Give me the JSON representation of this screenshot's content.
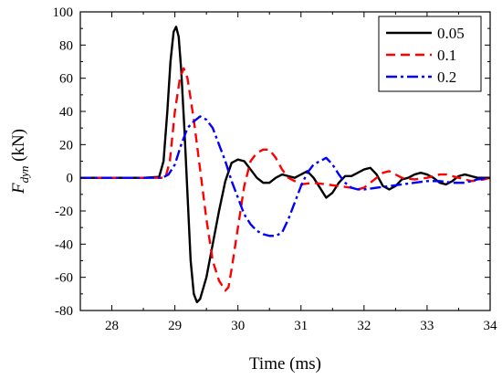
{
  "chart_data": {
    "type": "line",
    "xlabel": "Time (ms)",
    "ylabel": {
      "main": "F",
      "sub": "dyn",
      "unit": " (kN)"
    },
    "xlim": [
      27.5,
      34
    ],
    "ylim": [
      -80,
      100
    ],
    "xticks": [
      28,
      29,
      30,
      31,
      32,
      33,
      34
    ],
    "yticks": [
      -80,
      -60,
      -40,
      -20,
      0,
      20,
      40,
      60,
      80,
      100
    ],
    "grid": false,
    "legend_position": "top-right",
    "series": [
      {
        "name": "0.05",
        "color": "#000000",
        "dash": "solid",
        "points": [
          [
            27.5,
            0
          ],
          [
            28,
            0
          ],
          [
            28.5,
            0
          ],
          [
            28.75,
            0.5
          ],
          [
            28.82,
            10
          ],
          [
            28.88,
            40
          ],
          [
            28.93,
            70
          ],
          [
            28.98,
            88
          ],
          [
            29.02,
            91
          ],
          [
            29.06,
            85
          ],
          [
            29.1,
            65
          ],
          [
            29.15,
            30
          ],
          [
            29.2,
            -10
          ],
          [
            29.25,
            -50
          ],
          [
            29.3,
            -70
          ],
          [
            29.35,
            -75
          ],
          [
            29.4,
            -73
          ],
          [
            29.5,
            -60
          ],
          [
            29.6,
            -40
          ],
          [
            29.7,
            -20
          ],
          [
            29.8,
            -2
          ],
          [
            29.9,
            9
          ],
          [
            30,
            11
          ],
          [
            30.1,
            10
          ],
          [
            30.2,
            5
          ],
          [
            30.3,
            0
          ],
          [
            30.4,
            -3
          ],
          [
            30.5,
            -3
          ],
          [
            30.6,
            0
          ],
          [
            30.7,
            2
          ],
          [
            30.8,
            1
          ],
          [
            30.9,
            0
          ],
          [
            31,
            2
          ],
          [
            31.1,
            4
          ],
          [
            31.2,
            0
          ],
          [
            31.3,
            -6
          ],
          [
            31.4,
            -12
          ],
          [
            31.5,
            -9
          ],
          [
            31.6,
            -3
          ],
          [
            31.7,
            1
          ],
          [
            31.8,
            1
          ],
          [
            31.9,
            3
          ],
          [
            32,
            5
          ],
          [
            32.1,
            6
          ],
          [
            32.2,
            2
          ],
          [
            32.3,
            -5
          ],
          [
            32.4,
            -7
          ],
          [
            32.5,
            -5
          ],
          [
            32.6,
            -1
          ],
          [
            32.7,
            0
          ],
          [
            32.8,
            2
          ],
          [
            32.9,
            3
          ],
          [
            33,
            2
          ],
          [
            33.1,
            0
          ],
          [
            33.2,
            -3
          ],
          [
            33.3,
            -4
          ],
          [
            33.4,
            -2
          ],
          [
            33.5,
            1
          ],
          [
            33.6,
            2
          ],
          [
            33.7,
            1
          ],
          [
            33.8,
            0
          ],
          [
            34,
            0
          ]
        ]
      },
      {
        "name": "0.1",
        "color": "#ff0000",
        "dash": "10,6",
        "points": [
          [
            27.5,
            0
          ],
          [
            28,
            0
          ],
          [
            28.5,
            0
          ],
          [
            28.85,
            0
          ],
          [
            28.92,
            10
          ],
          [
            29,
            40
          ],
          [
            29.08,
            60
          ],
          [
            29.14,
            66
          ],
          [
            29.2,
            60
          ],
          [
            29.3,
            35
          ],
          [
            29.4,
            5
          ],
          [
            29.5,
            -25
          ],
          [
            29.6,
            -50
          ],
          [
            29.7,
            -62
          ],
          [
            29.8,
            -68
          ],
          [
            29.85,
            -66
          ],
          [
            29.9,
            -55
          ],
          [
            30,
            -30
          ],
          [
            30.1,
            -5
          ],
          [
            30.2,
            10
          ],
          [
            30.3,
            15
          ],
          [
            30.4,
            17
          ],
          [
            30.5,
            17
          ],
          [
            30.6,
            12
          ],
          [
            30.7,
            5
          ],
          [
            30.8,
            0
          ],
          [
            30.9,
            -2
          ],
          [
            31,
            -4
          ],
          [
            31.2,
            -3
          ],
          [
            31.4,
            -4
          ],
          [
            31.6,
            -5
          ],
          [
            31.8,
            -6
          ],
          [
            31.9,
            -7
          ],
          [
            32,
            -6
          ],
          [
            32.1,
            -3
          ],
          [
            32.2,
            0
          ],
          [
            32.3,
            3
          ],
          [
            32.4,
            4
          ],
          [
            32.5,
            2
          ],
          [
            32.6,
            0
          ],
          [
            32.8,
            -1
          ],
          [
            33,
            0
          ],
          [
            33.2,
            2
          ],
          [
            33.3,
            2
          ],
          [
            33.5,
            0
          ],
          [
            33.7,
            -2
          ],
          [
            33.9,
            -1
          ],
          [
            34,
            0
          ]
        ]
      },
      {
        "name": "0.2",
        "color": "#0000ff",
        "dash": "12,4,3,4",
        "points": [
          [
            27.5,
            0
          ],
          [
            28,
            0
          ],
          [
            28.5,
            0
          ],
          [
            28.8,
            0
          ],
          [
            28.9,
            2
          ],
          [
            29,
            8
          ],
          [
            29.1,
            20
          ],
          [
            29.2,
            30
          ],
          [
            29.3,
            34
          ],
          [
            29.4,
            37
          ],
          [
            29.5,
            35
          ],
          [
            29.6,
            30
          ],
          [
            29.7,
            20
          ],
          [
            29.8,
            10
          ],
          [
            29.9,
            -2
          ],
          [
            30,
            -12
          ],
          [
            30.1,
            -22
          ],
          [
            30.2,
            -28
          ],
          [
            30.3,
            -32
          ],
          [
            30.4,
            -34
          ],
          [
            30.5,
            -35
          ],
          [
            30.6,
            -35
          ],
          [
            30.7,
            -33
          ],
          [
            30.8,
            -25
          ],
          [
            30.9,
            -15
          ],
          [
            31,
            -5
          ],
          [
            31.1,
            3
          ],
          [
            31.2,
            8
          ],
          [
            31.3,
            10
          ],
          [
            31.4,
            12
          ],
          [
            31.5,
            8
          ],
          [
            31.6,
            2
          ],
          [
            31.7,
            -3
          ],
          [
            31.8,
            -6
          ],
          [
            31.9,
            -7
          ],
          [
            32,
            -7
          ],
          [
            32.2,
            -6
          ],
          [
            32.4,
            -5
          ],
          [
            32.6,
            -4
          ],
          [
            32.8,
            -3
          ],
          [
            33,
            -2
          ],
          [
            33.2,
            -2
          ],
          [
            33.4,
            -3
          ],
          [
            33.6,
            -3
          ],
          [
            33.8,
            -1
          ],
          [
            34,
            0
          ]
        ]
      }
    ]
  }
}
